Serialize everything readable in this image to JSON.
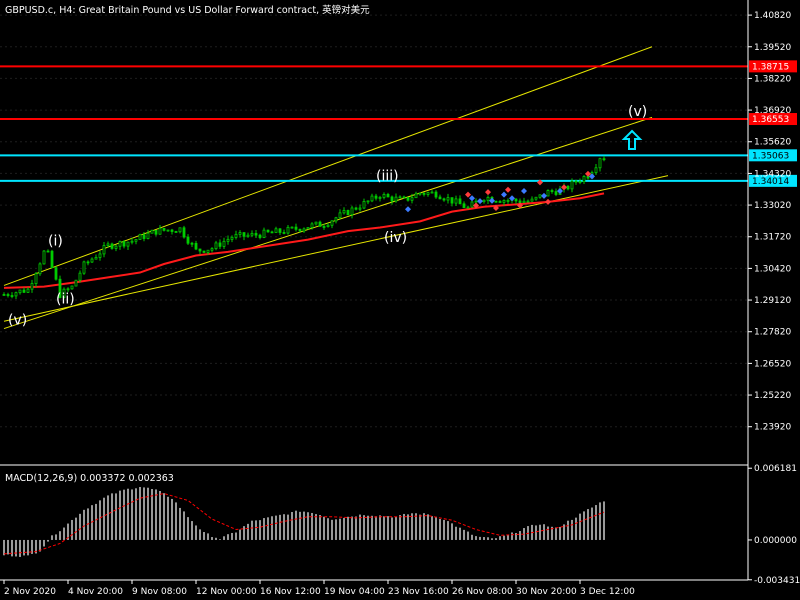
{
  "header": {
    "title": "GBPUSD.c, H4:  Great Britain Pound vs US Dollar Forward contract, 英镑对美元"
  },
  "macd_panel": {
    "label": "MACD(12,26,9) 0.003372 0.002363"
  },
  "colors": {
    "background": "#000000",
    "grid": "#1e1e1e",
    "text": "#ffffff",
    "candle": "#00cc00",
    "resistance": "#ff0000",
    "support": "#00e5ff",
    "channel": "#e6e600",
    "moving_average": "#ff1a1a",
    "macd_hist": "#c0c0c0",
    "macd_signal": "#ff0000",
    "arrow": "#00e5ff"
  },
  "chart_data": [
    {
      "type": "candlestick",
      "title": "GBPUSD.c, H4:  Great Britain Pound vs US Dollar Forward contract, 英镑对美元",
      "ylim": [
        1.2243,
        1.4144
      ],
      "y_ticks": [
        1.4082,
        1.3952,
        1.3822,
        1.3692,
        1.3562,
        1.3432,
        1.3302,
        1.3172,
        1.3042,
        1.2912,
        1.2782,
        1.2652,
        1.2522,
        1.2392
      ],
      "y_tick_labels": [
        "1.40820",
        "1.39520",
        "1.38220",
        "1.36920",
        "1.35620",
        "1.34320",
        "1.33020",
        "1.31720",
        "1.30420",
        "1.29120",
        "1.27820",
        "1.26520",
        "1.25220",
        "1.23920"
      ],
      "x_tick_labels": [
        "2 Nov 2020",
        "4 Nov 20:00",
        "9 Nov 08:00",
        "12 Nov 00:00",
        "16 Nov 12:00",
        "19 Nov 04:00",
        "23 Nov 16:00",
        "26 Nov 08:00",
        "30 Nov 20:00",
        "3 Dec 12:00"
      ],
      "x_tick_positions": [
        0,
        16,
        32,
        48,
        64,
        80,
        96,
        112,
        128,
        144
      ],
      "bars_total": 151,
      "price_path": [
        [
          0,
          1.2935
        ],
        [
          6,
          1.2955
        ],
        [
          10,
          1.3108
        ],
        [
          11,
          1.3098
        ],
        [
          14,
          1.2935
        ],
        [
          17,
          1.2965
        ],
        [
          20,
          1.3055
        ],
        [
          26,
          1.3135
        ],
        [
          32,
          1.3155
        ],
        [
          38,
          1.3195
        ],
        [
          44,
          1.3205
        ],
        [
          48,
          1.3115
        ],
        [
          52,
          1.3125
        ],
        [
          57,
          1.3172
        ],
        [
          62,
          1.3178
        ],
        [
          70,
          1.3195
        ],
        [
          76,
          1.3215
        ],
        [
          80,
          1.3225
        ],
        [
          86,
          1.3275
        ],
        [
          92,
          1.3325
        ],
        [
          94,
          1.3345
        ],
        [
          96,
          1.3332
        ],
        [
          100,
          1.3322
        ],
        [
          104,
          1.3352
        ],
        [
          108,
          1.335
        ],
        [
          112,
          1.332
        ],
        [
          116,
          1.329
        ],
        [
          120,
          1.3335
        ],
        [
          124,
          1.3325
        ],
        [
          128,
          1.332
        ],
        [
          132,
          1.3318
        ],
        [
          136,
          1.3355
        ],
        [
          140,
          1.3365
        ],
        [
          143,
          1.34
        ],
        [
          146,
          1.3425
        ],
        [
          148,
          1.347
        ],
        [
          149,
          1.35
        ]
      ],
      "moving_average": [
        [
          0,
          1.2962
        ],
        [
          10,
          1.2967
        ],
        [
          18,
          1.2985
        ],
        [
          26,
          1.3005
        ],
        [
          34,
          1.3025
        ],
        [
          40,
          1.306
        ],
        [
          48,
          1.3095
        ],
        [
          56,
          1.311
        ],
        [
          66,
          1.3135
        ],
        [
          76,
          1.316
        ],
        [
          86,
          1.3195
        ],
        [
          94,
          1.321
        ],
        [
          104,
          1.3235
        ],
        [
          112,
          1.3275
        ],
        [
          120,
          1.3295
        ],
        [
          128,
          1.3305
        ],
        [
          136,
          1.3315
        ],
        [
          144,
          1.333
        ],
        [
          150,
          1.335
        ]
      ],
      "horizontal_lines": [
        {
          "kind": "resistance",
          "value": 1.38715,
          "label": "1.38715"
        },
        {
          "kind": "resistance",
          "value": 1.36553,
          "label": "1.36553"
        },
        {
          "kind": "support",
          "value": 1.35063,
          "label": "1.35063"
        },
        {
          "kind": "support",
          "value": 1.34014,
          "label": "1.34014"
        }
      ],
      "trend_channel": [
        {
          "x1": 0,
          "y1": 1.2972,
          "x2": 162,
          "y2": 1.3952
        },
        {
          "x1": 0,
          "y1": 1.2795,
          "x2": 162,
          "y2": 1.3662
        },
        {
          "x1": 0,
          "y1": 1.2825,
          "x2": 166,
          "y2": 1.3423
        }
      ],
      "wave_labels": [
        {
          "label": "(i)",
          "x": 11,
          "y": 1.3135
        },
        {
          "label": "(ii)",
          "x": 13,
          "y": 1.2898
        },
        {
          "label": "(iii)",
          "x": 93,
          "y": 1.3402
        },
        {
          "label": "(iv)",
          "x": 95,
          "y": 1.315
        },
        {
          "label": "(v)",
          "x": 1,
          "y": 1.2812
        },
        {
          "label": "(v)",
          "x": 156,
          "y": 1.3668
        }
      ],
      "annotations": [
        {
          "kind": "up-arrow",
          "x": 157,
          "y": 1.3565
        }
      ],
      "diamond_markers": [
        {
          "x": 116,
          "y": 1.3345,
          "color": "#ff3b3b"
        },
        {
          "x": 117,
          "y": 1.333,
          "color": "#3b7bff"
        },
        {
          "x": 118,
          "y": 1.33,
          "color": "#ff3b3b"
        },
        {
          "x": 119,
          "y": 1.3318,
          "color": "#3b7bff"
        },
        {
          "x": 121,
          "y": 1.3355,
          "color": "#ff3b3b"
        },
        {
          "x": 122,
          "y": 1.332,
          "color": "#3b7bff"
        },
        {
          "x": 123,
          "y": 1.329,
          "color": "#ff3b3b"
        },
        {
          "x": 125,
          "y": 1.3345,
          "color": "#3b7bff"
        },
        {
          "x": 126,
          "y": 1.3365,
          "color": "#ff3b3b"
        },
        {
          "x": 127,
          "y": 1.333,
          "color": "#3b7bff"
        },
        {
          "x": 129,
          "y": 1.33,
          "color": "#ff3b3b"
        },
        {
          "x": 130,
          "y": 1.336,
          "color": "#3b7bff"
        },
        {
          "x": 134,
          "y": 1.3395,
          "color": "#ff3b3b"
        },
        {
          "x": 135,
          "y": 1.334,
          "color": "#3b7bff"
        },
        {
          "x": 136,
          "y": 1.3315,
          "color": "#ff3b3b"
        },
        {
          "x": 139,
          "y": 1.336,
          "color": "#3b7bff"
        },
        {
          "x": 140,
          "y": 1.3375,
          "color": "#ff3b3b"
        },
        {
          "x": 146,
          "y": 1.343,
          "color": "#ff3b3b"
        },
        {
          "x": 147,
          "y": 1.342,
          "color": "#3b7bff"
        },
        {
          "x": 101,
          "y": 1.3285,
          "color": "#3b7bff"
        }
      ]
    },
    {
      "type": "histogram",
      "title": "MACD(12,26,9) 0.003372 0.002363",
      "ylim": [
        -0.00345,
        0.0062
      ],
      "y_ticks": [
        0.006181,
        0.0,
        -0.003431
      ],
      "y_tick_labels": [
        "0.006181",
        "0.000000",
        "-0.003431"
      ],
      "histogram": [
        [
          0,
          -0.0013
        ],
        [
          6,
          -0.0014
        ],
        [
          9,
          -0.0009
        ],
        [
          12,
          0.0003
        ],
        [
          16,
          0.0014
        ],
        [
          20,
          0.0026
        ],
        [
          26,
          0.0038
        ],
        [
          30,
          0.0043
        ],
        [
          34,
          0.0046
        ],
        [
          38,
          0.0043
        ],
        [
          42,
          0.0036
        ],
        [
          46,
          0.002
        ],
        [
          50,
          0.0006
        ],
        [
          54,
          0.0001
        ],
        [
          58,
          0.0007
        ],
        [
          62,
          0.0016
        ],
        [
          66,
          0.0019
        ],
        [
          70,
          0.0022
        ],
        [
          74,
          0.0025
        ],
        [
          78,
          0.0023
        ],
        [
          82,
          0.0018
        ],
        [
          86,
          0.002
        ],
        [
          90,
          0.0022
        ],
        [
          94,
          0.0021
        ],
        [
          98,
          0.002
        ],
        [
          102,
          0.0023
        ],
        [
          106,
          0.0022
        ],
        [
          110,
          0.0018
        ],
        [
          114,
          0.001
        ],
        [
          118,
          0.0003
        ],
        [
          122,
          0.0001
        ],
        [
          126,
          0.0004
        ],
        [
          130,
          0.001
        ],
        [
          134,
          0.0014
        ],
        [
          138,
          0.001
        ],
        [
          142,
          0.0018
        ],
        [
          146,
          0.0026
        ],
        [
          150,
          0.0034
        ]
      ],
      "signal": [
        [
          0,
          -0.0012
        ],
        [
          8,
          -0.001
        ],
        [
          14,
          -0.0003
        ],
        [
          20,
          0.0012
        ],
        [
          28,
          0.0026
        ],
        [
          34,
          0.0036
        ],
        [
          40,
          0.004
        ],
        [
          46,
          0.0034
        ],
        [
          52,
          0.0018
        ],
        [
          58,
          0.0009
        ],
        [
          64,
          0.0011
        ],
        [
          70,
          0.0016
        ],
        [
          76,
          0.002
        ],
        [
          82,
          0.002
        ],
        [
          88,
          0.0019
        ],
        [
          94,
          0.002
        ],
        [
          100,
          0.002
        ],
        [
          106,
          0.0021
        ],
        [
          112,
          0.0017
        ],
        [
          118,
          0.0009
        ],
        [
          124,
          0.0004
        ],
        [
          130,
          0.0005
        ],
        [
          136,
          0.0009
        ],
        [
          142,
          0.0013
        ],
        [
          150,
          0.0024
        ]
      ]
    }
  ]
}
